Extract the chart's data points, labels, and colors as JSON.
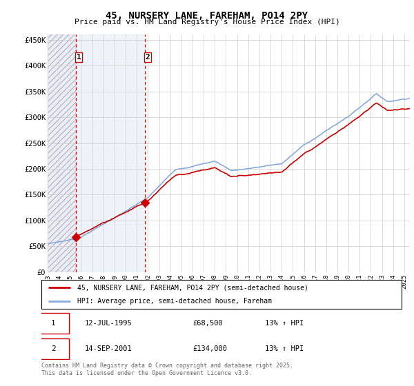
{
  "title": "45, NURSERY LANE, FAREHAM, PO14 2PY",
  "subtitle": "Price paid vs. HM Land Registry's House Price Index (HPI)",
  "ylabel_ticks": [
    "£0",
    "£50K",
    "£100K",
    "£150K",
    "£200K",
    "£250K",
    "£300K",
    "£350K",
    "£400K",
    "£450K"
  ],
  "ytick_values": [
    0,
    50000,
    100000,
    150000,
    200000,
    250000,
    300000,
    350000,
    400000,
    450000
  ],
  "ylim": [
    0,
    460000
  ],
  "xlim_start": 1993.0,
  "xlim_end": 2025.5,
  "sale1_x": 1995.53,
  "sale1_y": 68500,
  "sale1_label": "1",
  "sale1_date": "12-JUL-1995",
  "sale1_price": "£68,500",
  "sale1_hpi": "13% ↑ HPI",
  "sale2_x": 2001.71,
  "sale2_y": 134000,
  "sale2_label": "2",
  "sale2_date": "14-SEP-2001",
  "sale2_price": "£134,000",
  "sale2_hpi": "13% ↑ HPI",
  "property_legend": "45, NURSERY LANE, FAREHAM, PO14 2PY (semi-detached house)",
  "hpi_legend": "HPI: Average price, semi-detached house, Fareham",
  "footer": "Contains HM Land Registry data © Crown copyright and database right 2025.\nThis data is licensed under the Open Government Licence v3.0.",
  "line_color_property": "#cc0000",
  "line_color_hpi": "#88aadd",
  "marker_color": "#cc0000",
  "grid_color": "#cccccc",
  "dashed_line_color": "#cc0000",
  "xtick_years": [
    1993,
    1994,
    1995,
    1996,
    1997,
    1998,
    1999,
    2000,
    2001,
    2002,
    2003,
    2004,
    2005,
    2006,
    2007,
    2008,
    2009,
    2010,
    2011,
    2012,
    2013,
    2014,
    2015,
    2016,
    2017,
    2018,
    2019,
    2020,
    2021,
    2022,
    2023,
    2024,
    2025
  ]
}
